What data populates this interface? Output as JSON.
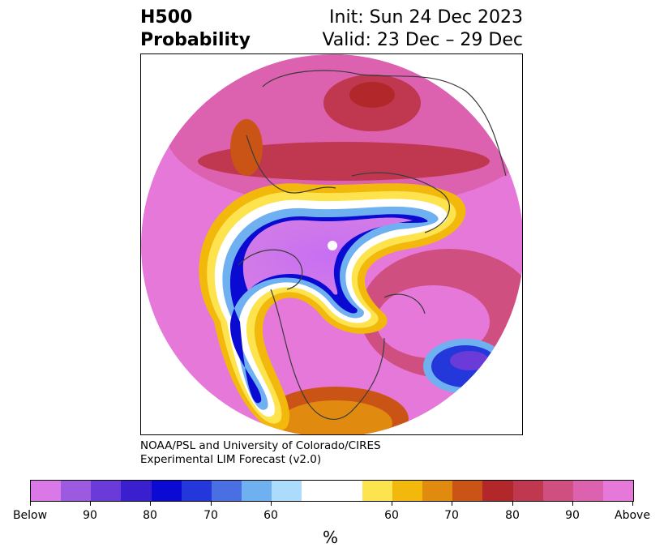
{
  "header": {
    "title_line1": "H500",
    "title_line2": "Probability",
    "init_text": "Init: Sun 24 Dec 2023",
    "valid_text": "Valid: 23 Dec – 29 Dec"
  },
  "credit": {
    "line1": "NOAA/PSL and University of Colorado/CIRES",
    "line2": "Experimental LIM Forecast (v2.0)"
  },
  "colorbar": {
    "colors": [
      "#d978e6",
      "#9b5ae0",
      "#6b3bd9",
      "#3a1fcf",
      "#0a0ad2",
      "#2437db",
      "#4a6fe3",
      "#6fb0f0",
      "#abdcfc",
      "#ffffff",
      "#ffffff",
      "#fde34d",
      "#f3b80c",
      "#e08a10",
      "#c95416",
      "#b2282a",
      "#c0384f",
      "#cf5080",
      "#dc62b0",
      "#e678d9"
    ],
    "labels": [
      "Below",
      "90",
      "80",
      "70",
      "60",
      "60",
      "70",
      "80",
      "90",
      "Above"
    ],
    "unit": "%"
  },
  "map": {
    "projection": "north polar stereographic",
    "palette": {
      "ocean_above": "#e678d9",
      "deep_below": "#0a0ad2",
      "below_light": "#d075ef",
      "coast": "#3a3a3a"
    }
  }
}
